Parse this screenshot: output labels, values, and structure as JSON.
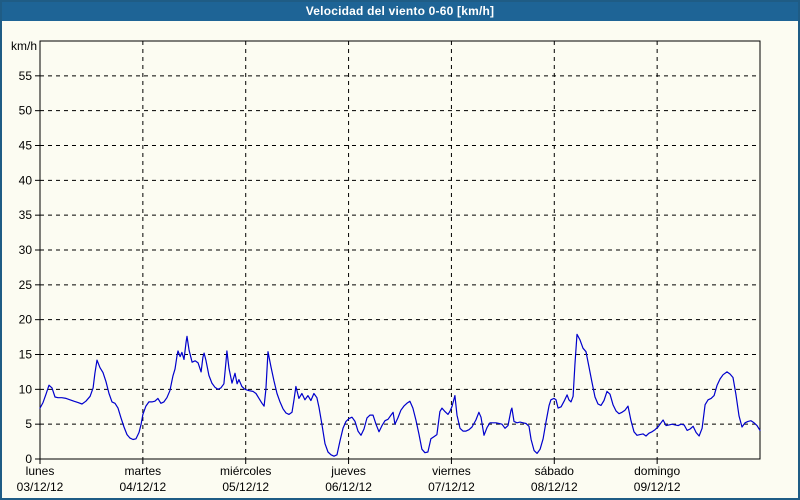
{
  "window": {
    "title": "Velocidad del viento 0-60 [km/h]"
  },
  "colors": {
    "title_bar_bg": "#1e6496",
    "title_text": "#ffffff",
    "outer_border": "#1f5c85",
    "background": "#fcfcf2",
    "line": "#0000cc",
    "grid": "#000000",
    "frame": "#000000",
    "label_text": "#000000"
  },
  "chart_data": {
    "type": "line",
    "title": "Velocidad del viento 0-60 [km/h]",
    "ylabel": "km/h",
    "xlabel": "",
    "ylim": [
      0,
      60
    ],
    "yticks": [
      0,
      5,
      10,
      15,
      20,
      25,
      30,
      35,
      40,
      45,
      50,
      55
    ],
    "grid": "dashed",
    "legend": "none",
    "x_total_hours": 168,
    "days": [
      {
        "weekday": "lunes",
        "date": "03/12/12"
      },
      {
        "weekday": "martes",
        "date": "04/12/12"
      },
      {
        "weekday": "miércoles",
        "date": "05/12/12"
      },
      {
        "weekday": "jueves",
        "date": "06/12/12"
      },
      {
        "weekday": "viernes",
        "date": "07/12/12"
      },
      {
        "weekday": "sábado",
        "date": "08/12/12"
      },
      {
        "weekday": "domingo",
        "date": "09/12/12"
      }
    ],
    "series": [
      {
        "name": "Velocidad del viento",
        "unit": "km/h",
        "color": "#0000cc",
        "points": [
          [
            0.0,
            7.3
          ],
          [
            0.7,
            8.1
          ],
          [
            1.4,
            9.3
          ],
          [
            2.1,
            10.6
          ],
          [
            2.8,
            10.2
          ],
          [
            3.5,
            8.9
          ],
          [
            4.2,
            8.8
          ],
          [
            5.1,
            8.8
          ],
          [
            6.1,
            8.7
          ],
          [
            7.0,
            8.5
          ],
          [
            7.9,
            8.3
          ],
          [
            8.9,
            8.1
          ],
          [
            9.8,
            7.9
          ],
          [
            10.7,
            8.3
          ],
          [
            11.7,
            9.0
          ],
          [
            12.4,
            10.2
          ],
          [
            12.8,
            12.3
          ],
          [
            13.3,
            14.2
          ],
          [
            14.0,
            13.1
          ],
          [
            14.7,
            12.4
          ],
          [
            15.4,
            11.1
          ],
          [
            16.1,
            9.4
          ],
          [
            16.8,
            8.2
          ],
          [
            17.5,
            8.0
          ],
          [
            18.2,
            7.3
          ],
          [
            18.9,
            5.9
          ],
          [
            19.6,
            4.6
          ],
          [
            20.3,
            3.5
          ],
          [
            21.0,
            3.0
          ],
          [
            21.7,
            2.8
          ],
          [
            22.4,
            2.9
          ],
          [
            23.1,
            3.8
          ],
          [
            23.6,
            5.0
          ],
          [
            24.0,
            6.4
          ],
          [
            24.7,
            7.6
          ],
          [
            25.4,
            8.2
          ],
          [
            26.1,
            8.2
          ],
          [
            26.8,
            8.3
          ],
          [
            27.5,
            8.7
          ],
          [
            28.2,
            8.0
          ],
          [
            28.9,
            8.2
          ],
          [
            29.6,
            8.8
          ],
          [
            30.3,
            9.8
          ],
          [
            31.0,
            11.9
          ],
          [
            31.5,
            12.9
          ],
          [
            32.0,
            14.9
          ],
          [
            32.2,
            15.5
          ],
          [
            32.7,
            14.7
          ],
          [
            33.1,
            15.3
          ],
          [
            33.6,
            14.3
          ],
          [
            34.1,
            16.8
          ],
          [
            34.3,
            17.6
          ],
          [
            34.8,
            15.6
          ],
          [
            35.5,
            13.9
          ],
          [
            36.2,
            14.1
          ],
          [
            36.9,
            13.8
          ],
          [
            37.6,
            12.5
          ],
          [
            38.0,
            14.6
          ],
          [
            38.3,
            15.2
          ],
          [
            38.7,
            14.2
          ],
          [
            39.4,
            12.0
          ],
          [
            40.1,
            10.9
          ],
          [
            40.8,
            10.3
          ],
          [
            41.5,
            10.0
          ],
          [
            42.2,
            10.2
          ],
          [
            42.9,
            10.8
          ],
          [
            43.4,
            14.0
          ],
          [
            43.6,
            15.5
          ],
          [
            44.1,
            13.0
          ],
          [
            44.8,
            10.9
          ],
          [
            45.5,
            12.3
          ],
          [
            46.0,
            10.8
          ],
          [
            46.4,
            11.4
          ],
          [
            47.1,
            10.4
          ],
          [
            47.8,
            10.0
          ],
          [
            48.8,
            9.8
          ],
          [
            49.7,
            9.7
          ],
          [
            50.4,
            9.4
          ],
          [
            51.1,
            8.7
          ],
          [
            51.8,
            8.0
          ],
          [
            52.3,
            7.6
          ],
          [
            52.7,
            10.0
          ],
          [
            53.2,
            15.4
          ],
          [
            53.9,
            13.2
          ],
          [
            54.6,
            11.2
          ],
          [
            55.3,
            9.4
          ],
          [
            56.0,
            8.2
          ],
          [
            56.7,
            7.2
          ],
          [
            57.4,
            6.6
          ],
          [
            58.1,
            6.4
          ],
          [
            58.8,
            6.7
          ],
          [
            59.3,
            8.6
          ],
          [
            59.7,
            10.4
          ],
          [
            60.4,
            8.7
          ],
          [
            61.1,
            9.4
          ],
          [
            61.8,
            8.5
          ],
          [
            62.5,
            9.1
          ],
          [
            63.2,
            8.4
          ],
          [
            63.9,
            9.4
          ],
          [
            64.6,
            8.8
          ],
          [
            65.1,
            7.4
          ],
          [
            65.8,
            4.9
          ],
          [
            66.5,
            2.2
          ],
          [
            67.2,
            1.0
          ],
          [
            67.9,
            0.6
          ],
          [
            68.6,
            0.4
          ],
          [
            69.3,
            0.6
          ],
          [
            70.0,
            2.6
          ],
          [
            70.7,
            4.4
          ],
          [
            71.4,
            5.4
          ],
          [
            72.1,
            5.8
          ],
          [
            72.8,
            6.0
          ],
          [
            73.5,
            5.4
          ],
          [
            74.2,
            4.0
          ],
          [
            74.9,
            3.4
          ],
          [
            75.6,
            4.3
          ],
          [
            76.3,
            5.9
          ],
          [
            77.0,
            6.3
          ],
          [
            77.7,
            6.3
          ],
          [
            78.4,
            5.0
          ],
          [
            79.1,
            3.9
          ],
          [
            79.8,
            4.8
          ],
          [
            80.5,
            5.5
          ],
          [
            81.2,
            5.7
          ],
          [
            81.9,
            6.3
          ],
          [
            82.4,
            6.7
          ],
          [
            82.8,
            5.0
          ],
          [
            83.5,
            5.9
          ],
          [
            84.2,
            7.0
          ],
          [
            84.9,
            7.6
          ],
          [
            85.6,
            8.0
          ],
          [
            86.3,
            8.3
          ],
          [
            87.0,
            7.3
          ],
          [
            87.7,
            5.6
          ],
          [
            88.4,
            3.6
          ],
          [
            89.1,
            1.4
          ],
          [
            89.8,
            0.9
          ],
          [
            90.5,
            1.0
          ],
          [
            91.2,
            2.9
          ],
          [
            91.9,
            3.2
          ],
          [
            92.6,
            3.5
          ],
          [
            93.3,
            6.8
          ],
          [
            93.8,
            7.3
          ],
          [
            94.5,
            6.8
          ],
          [
            95.2,
            6.4
          ],
          [
            95.7,
            6.9
          ],
          [
            96.1,
            7.5
          ],
          [
            96.8,
            9.1
          ],
          [
            97.3,
            6.3
          ],
          [
            98.0,
            4.4
          ],
          [
            98.7,
            4.0
          ],
          [
            99.4,
            4.0
          ],
          [
            100.1,
            4.2
          ],
          [
            100.8,
            4.6
          ],
          [
            101.7,
            5.6
          ],
          [
            102.4,
            6.7
          ],
          [
            102.9,
            6.0
          ],
          [
            103.6,
            3.4
          ],
          [
            104.3,
            4.5
          ],
          [
            105.0,
            5.2
          ],
          [
            105.7,
            5.2
          ],
          [
            106.4,
            5.2
          ],
          [
            107.1,
            5.1
          ],
          [
            107.8,
            5.0
          ],
          [
            108.5,
            4.4
          ],
          [
            109.2,
            4.8
          ],
          [
            109.9,
            7.0
          ],
          [
            110.1,
            7.3
          ],
          [
            110.6,
            5.4
          ],
          [
            111.3,
            5.2
          ],
          [
            112.0,
            5.3
          ],
          [
            112.7,
            5.2
          ],
          [
            113.4,
            5.1
          ],
          [
            114.1,
            4.7
          ],
          [
            114.6,
            2.8
          ],
          [
            115.3,
            1.2
          ],
          [
            116.0,
            0.8
          ],
          [
            116.7,
            1.4
          ],
          [
            117.4,
            2.9
          ],
          [
            118.1,
            5.4
          ],
          [
            118.8,
            7.7
          ],
          [
            119.2,
            8.5
          ],
          [
            119.9,
            8.7
          ],
          [
            120.4,
            8.5
          ],
          [
            120.9,
            7.3
          ],
          [
            121.6,
            7.5
          ],
          [
            122.3,
            8.3
          ],
          [
            123.0,
            9.2
          ],
          [
            123.4,
            8.5
          ],
          [
            123.9,
            8.2
          ],
          [
            124.4,
            9.0
          ],
          [
            124.8,
            13.5
          ],
          [
            125.3,
            17.9
          ],
          [
            126.0,
            17.1
          ],
          [
            126.7,
            15.9
          ],
          [
            127.4,
            15.4
          ],
          [
            128.1,
            13.2
          ],
          [
            128.8,
            11.0
          ],
          [
            129.5,
            8.9
          ],
          [
            130.2,
            7.9
          ],
          [
            130.9,
            7.7
          ],
          [
            131.6,
            8.4
          ],
          [
            132.3,
            9.7
          ],
          [
            133.0,
            9.3
          ],
          [
            133.7,
            7.8
          ],
          [
            134.4,
            6.9
          ],
          [
            135.1,
            6.5
          ],
          [
            135.8,
            6.7
          ],
          [
            136.5,
            7.0
          ],
          [
            137.2,
            7.6
          ],
          [
            137.9,
            5.5
          ],
          [
            138.6,
            3.9
          ],
          [
            139.3,
            3.4
          ],
          [
            140.0,
            3.5
          ],
          [
            140.7,
            3.6
          ],
          [
            141.4,
            3.3
          ],
          [
            142.1,
            3.7
          ],
          [
            142.8,
            3.9
          ],
          [
            143.5,
            4.2
          ],
          [
            144.2,
            4.6
          ],
          [
            144.9,
            5.2
          ],
          [
            145.4,
            5.6
          ],
          [
            146.1,
            4.8
          ],
          [
            146.8,
            4.9
          ],
          [
            147.5,
            5.0
          ],
          [
            148.2,
            4.9
          ],
          [
            148.9,
            4.8
          ],
          [
            149.6,
            5.0
          ],
          [
            150.3,
            4.9
          ],
          [
            151.0,
            4.1
          ],
          [
            151.7,
            4.3
          ],
          [
            152.4,
            4.7
          ],
          [
            153.1,
            3.8
          ],
          [
            153.8,
            3.3
          ],
          [
            154.5,
            4.4
          ],
          [
            155.2,
            7.8
          ],
          [
            155.9,
            8.5
          ],
          [
            156.6,
            8.7
          ],
          [
            157.3,
            9.1
          ],
          [
            158.0,
            10.6
          ],
          [
            158.7,
            11.5
          ],
          [
            159.4,
            12.1
          ],
          [
            160.3,
            12.5
          ],
          [
            161.0,
            12.2
          ],
          [
            161.7,
            11.7
          ],
          [
            162.4,
            9.2
          ],
          [
            163.1,
            6.2
          ],
          [
            163.8,
            4.6
          ],
          [
            164.5,
            5.2
          ],
          [
            165.2,
            5.4
          ],
          [
            165.9,
            5.5
          ],
          [
            166.6,
            5.2
          ],
          [
            167.3,
            4.8
          ],
          [
            168.0,
            4.1
          ]
        ]
      }
    ]
  }
}
